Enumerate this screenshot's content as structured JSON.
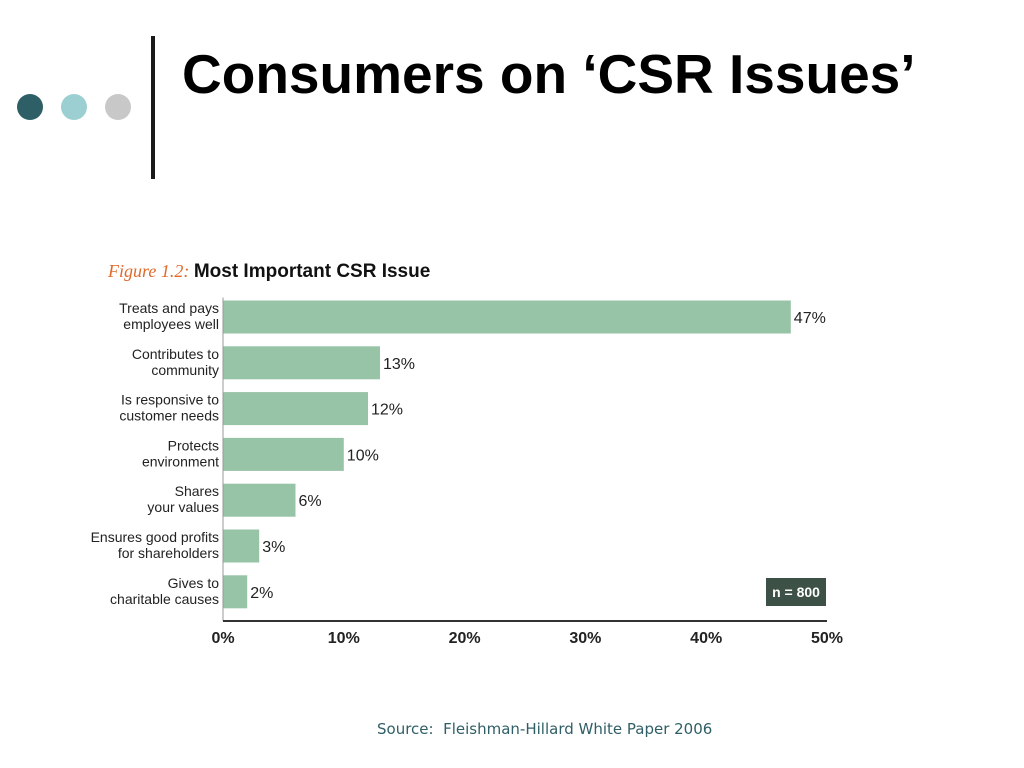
{
  "slide": {
    "title": "Consumers on ‘CSR Issues’",
    "source": "Source:  Fleishman-Hillard White Paper 2006"
  },
  "theme": {
    "dot_colors": [
      "#2f5f66",
      "#9ccfd2",
      "#c8c8c8"
    ],
    "rule_color": "#1a1a1a",
    "bar_color": "#97c3a6",
    "axis_color": "#333333",
    "figure_prefix_color": "#e06a2c",
    "text_color": "#222222",
    "source_color": "#2f5f66",
    "n_box_bg": "#3d5146",
    "n_box_text": "#ffffff"
  },
  "chart_data": {
    "type": "bar",
    "orientation": "horizontal",
    "figure_prefix": "Figure 1.2:",
    "title": "Most Important CSR Issue",
    "categories": [
      [
        "Treats and pays",
        "employees well"
      ],
      [
        "Contributes to",
        "community"
      ],
      [
        "Is responsive to",
        "customer needs"
      ],
      [
        "Protects",
        "environment"
      ],
      [
        "Shares",
        "your values"
      ],
      [
        "Ensures good profits",
        "for shareholders"
      ],
      [
        "Gives to",
        "charitable causes"
      ]
    ],
    "values": [
      47,
      13,
      12,
      10,
      6,
      3,
      2
    ],
    "value_labels": [
      "47%",
      "13%",
      "12%",
      "10%",
      "6%",
      "3%",
      "2%"
    ],
    "xlim": [
      0,
      50
    ],
    "xticks": [
      0,
      10,
      20,
      30,
      40,
      50
    ],
    "xtick_labels": [
      "0%",
      "10%",
      "20%",
      "30%",
      "40%",
      "50%"
    ],
    "xlabel": "",
    "ylabel": "",
    "grid": false,
    "annotation": "n = 800"
  }
}
